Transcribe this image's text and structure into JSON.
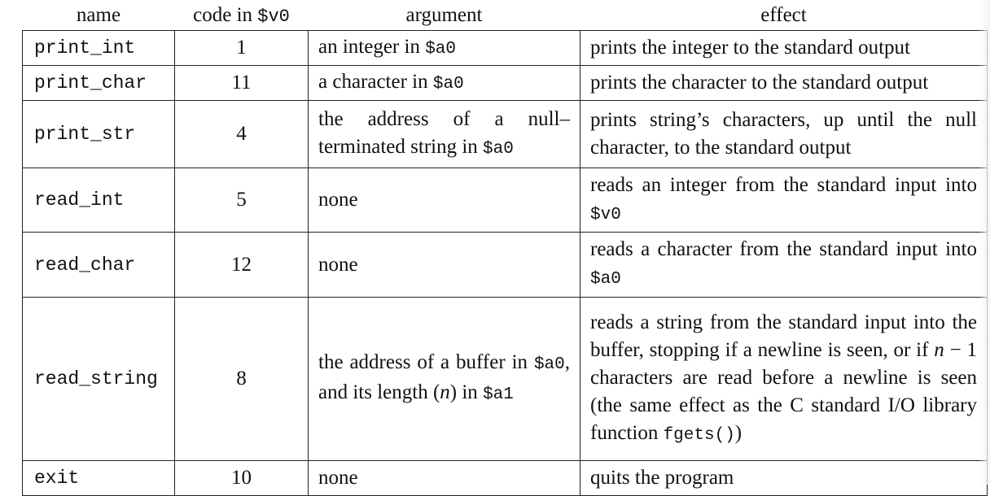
{
  "headers": {
    "name": "name",
    "code_prefix": "code in ",
    "code_reg": "$v0",
    "argument": "argument",
    "effect": "effect"
  },
  "rows": [
    {
      "name": "print_int",
      "code": "1",
      "argument": {
        "a": "an integer in ",
        "b": "$a0"
      },
      "effect": {
        "a": "prints the integer to the standard output"
      }
    },
    {
      "name": "print_char",
      "code": "11",
      "argument": {
        "a": "a character in ",
        "b": "$a0"
      },
      "effect": {
        "a": "prints the character to the standard output"
      }
    },
    {
      "name": "print_str",
      "code": "4",
      "argument": {
        "a": "the address of a null–terminated string in ",
        "b": "$a0"
      },
      "effect": {
        "a": "prints string’s characters, up until the null character, to the standard output"
      }
    },
    {
      "name": "read_int",
      "code": "5",
      "argument": {
        "a": "none"
      },
      "effect": {
        "a": "reads an integer from the standard input into ",
        "b": "$v0"
      }
    },
    {
      "name": "read_char",
      "code": "12",
      "argument": {
        "a": "none"
      },
      "effect": {
        "a": "reads a character from the standard input into ",
        "b": "$a0"
      }
    },
    {
      "name": "read_string",
      "code": "8",
      "argument": {
        "a": "the address of a buffer in ",
        "b": "$a0",
        "c": ", and its length (",
        "d": "n",
        "e": ") in ",
        "f": "$a1"
      },
      "effect": {
        "a": "reads a string from the standard input into the buffer, stopping if a newline is seen, or if ",
        "b": "n",
        "c": " − 1 characters are read before a new­line is seen (the same effect as the C standard I/O library function ",
        "d": "fgets()",
        "e": ")"
      }
    },
    {
      "name": "exit",
      "code": "10",
      "argument": {
        "a": "none"
      },
      "effect": {
        "a": "quits the program"
      }
    }
  ]
}
